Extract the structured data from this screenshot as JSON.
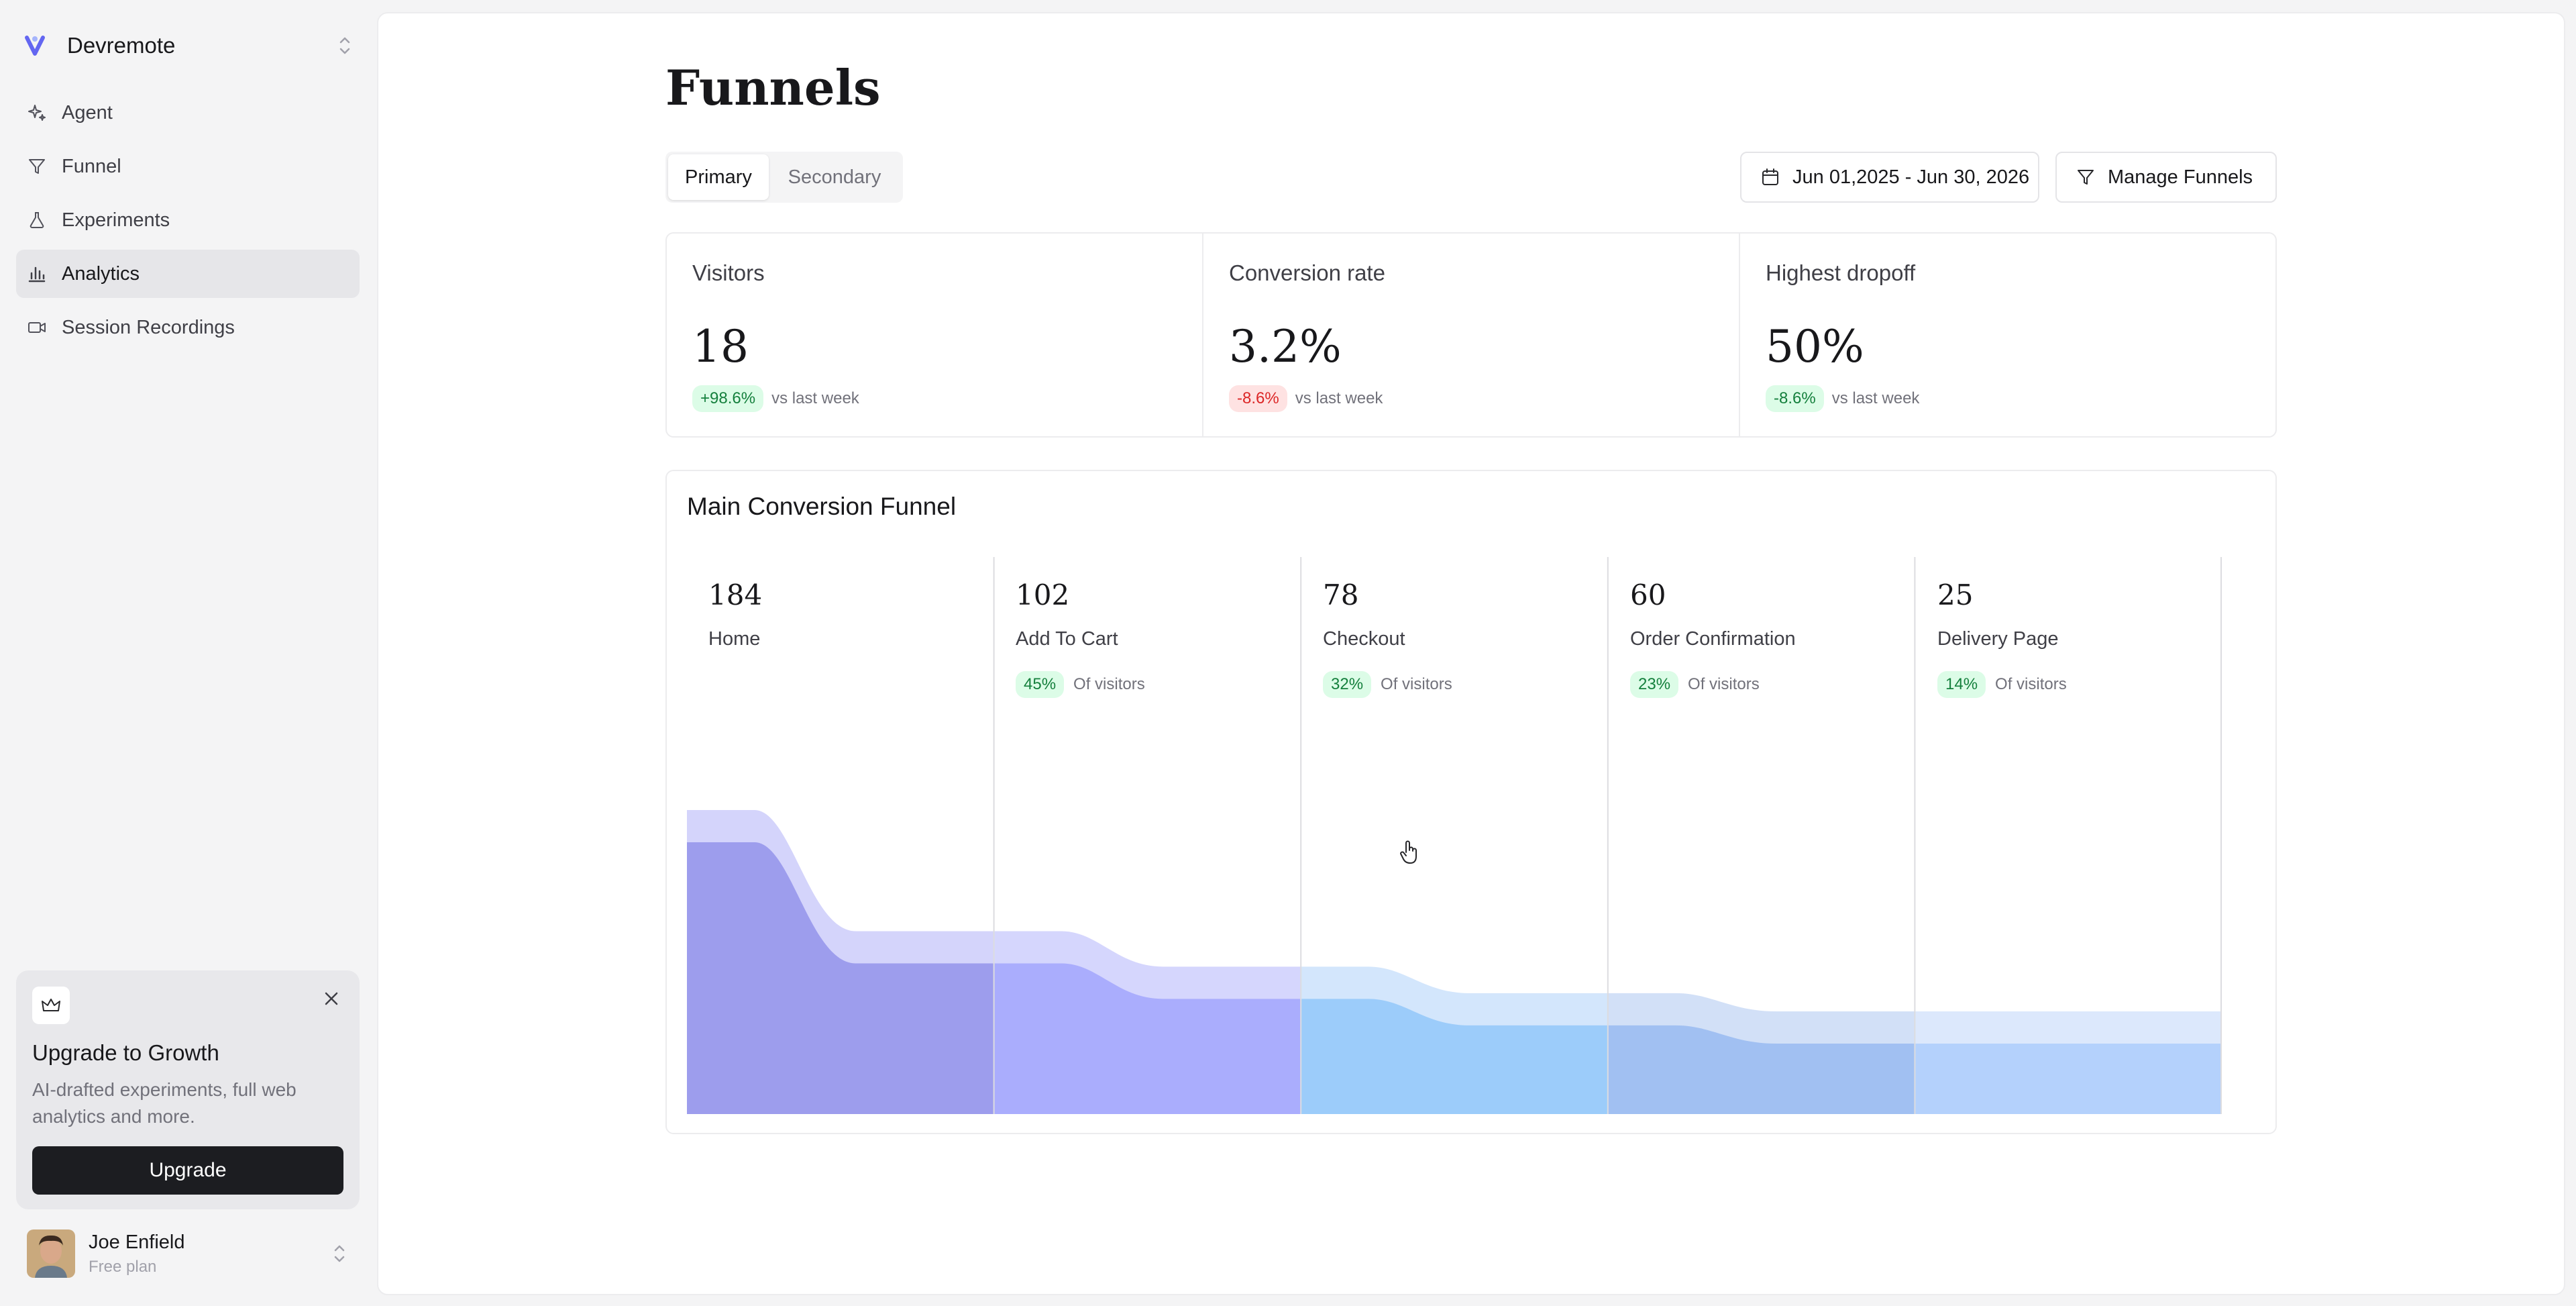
{
  "workspace": {
    "name": "Devremote",
    "accent": "#6366f1"
  },
  "nav": {
    "items": [
      {
        "label": "Agent",
        "icon": "sparkle-icon"
      },
      {
        "label": "Funnel",
        "icon": "filter-icon"
      },
      {
        "label": "Experiments",
        "icon": "flask-icon"
      },
      {
        "label": "Analytics",
        "icon": "bar-chart-icon",
        "active": true
      },
      {
        "label": "Session Recordings",
        "icon": "video-icon"
      }
    ]
  },
  "upgrade": {
    "title": "Upgrade to Growth",
    "description": "AI-drafted experiments, full web analytics and more.",
    "button_label": "Upgrade"
  },
  "user": {
    "name": "Joe Enfield",
    "plan": "Free plan"
  },
  "page": {
    "title": "Funnels"
  },
  "tabs": [
    {
      "label": "Primary",
      "active": true
    },
    {
      "label": "Secondary",
      "active": false
    }
  ],
  "toolbar": {
    "date_range": "Jun 01,2025 - Jun 30, 2026",
    "manage_label": "Manage Funnels"
  },
  "stats": [
    {
      "label": "Visitors",
      "value": "18",
      "change": "+98.6%",
      "change_color": "green",
      "suffix": "vs last week"
    },
    {
      "label": "Conversion rate",
      "value": "3.2%",
      "change": "-8.6%",
      "change_color": "red",
      "suffix": "vs last week"
    },
    {
      "label": "Highest dropoff",
      "value": "50%",
      "change": "-8.6%",
      "change_color": "green",
      "suffix": "vs last week"
    }
  ],
  "funnel": {
    "title": "Main Conversion Funnel",
    "steps": [
      {
        "count": "184",
        "name": "Home",
        "percent": "",
        "suffix": ""
      },
      {
        "count": "102",
        "name": "Add To Cart",
        "percent": "45%",
        "suffix": "Of visitors"
      },
      {
        "count": "78",
        "name": "Checkout",
        "percent": "32%",
        "suffix": "Of visitors"
      },
      {
        "count": "60",
        "name": "Order Confirmation",
        "percent": "23%",
        "suffix": "Of visitors"
      },
      {
        "count": "25",
        "name": "Delivery Page",
        "percent": "14%",
        "suffix": "Of visitors"
      }
    ],
    "segment_colors": [
      "#9d9ded",
      "#aaadfd",
      "#9cccfa",
      "#a1c0f2",
      "#b4d1fc"
    ],
    "band_colors": [
      "#d4d4fb",
      "#d5d6fd",
      "#d3e6fc",
      "#d2e0f7",
      "#dce8fc"
    ]
  }
}
